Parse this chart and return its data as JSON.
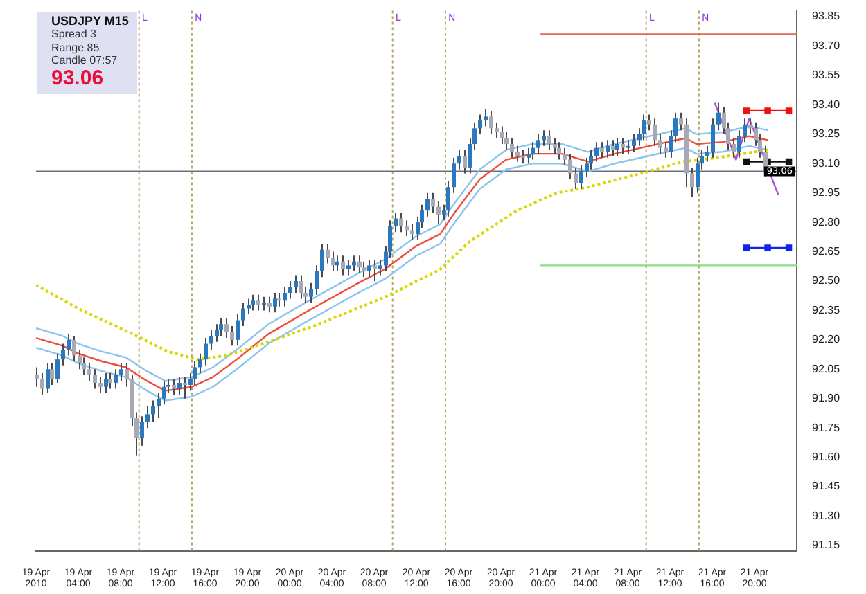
{
  "chart_data": {
    "type": "candlestick",
    "title": "USDJPY M15",
    "annotations": [
      "Spread 3",
      "Range 85",
      "Candle 07:57",
      "93.06"
    ],
    "xlim": [
      "2010-04-19T00:00",
      "2010-04-22T00:00"
    ],
    "xticks": [
      {
        "value": "2010-04-19T00:00",
        "label": "19 Apr 2010"
      },
      {
        "value": "2010-04-19T04:00",
        "label": "19 Apr 04:00"
      },
      {
        "value": "2010-04-19T08:00",
        "label": "19 Apr 08:00"
      },
      {
        "value": "2010-04-19T12:00",
        "label": "19 Apr 12:00"
      },
      {
        "value": "2010-04-19T16:00",
        "label": "19 Apr 16:00"
      },
      {
        "value": "2010-04-19T20:00",
        "label": "19 Apr 20:00"
      },
      {
        "value": "2010-04-20T00:00",
        "label": "20 Apr 00:00"
      },
      {
        "value": "2010-04-20T04:00",
        "label": "20 Apr 04:00"
      },
      {
        "value": "2010-04-20T08:00",
        "label": "20 Apr 08:00"
      },
      {
        "value": "2010-04-20T12:00",
        "label": "20 Apr 12:00"
      },
      {
        "value": "2010-04-20T16:00",
        "label": "20 Apr 16:00"
      },
      {
        "value": "2010-04-20T20:00",
        "label": "20 Apr 20:00"
      },
      {
        "value": "2010-04-21T00:00",
        "label": "21 Apr 00:00"
      },
      {
        "value": "2010-04-21T04:00",
        "label": "21 Apr 04:00"
      },
      {
        "value": "2010-04-21T08:00",
        "label": "21 Apr 08:00"
      },
      {
        "value": "2010-04-21T12:00",
        "label": "21 Apr 12:00"
      },
      {
        "value": "2010-04-21T16:00",
        "label": "21 Apr 16:00"
      },
      {
        "value": "2010-04-21T20:00",
        "label": "21 Apr 20:00"
      }
    ],
    "ylim": [
      91.12,
      93.88
    ],
    "yticks": [
      93.85,
      {
        "value": 93.7,
        "label": "93.70"
      },
      93.55,
      {
        "value": 93.4,
        "label": "93.40"
      },
      93.25,
      {
        "value": 93.1,
        "label": "93.10"
      },
      92.95,
      {
        "value": 92.8,
        "label": "92.80"
      },
      92.65,
      {
        "value": 92.5,
        "label": "92.50"
      },
      92.35,
      {
        "value": 92.2,
        "label": "92.20"
      },
      92.05,
      {
        "value": 91.9,
        "label": "91.90"
      },
      91.75,
      {
        "value": 91.6,
        "label": "91.60"
      },
      91.45,
      {
        "value": 91.3,
        "label": "91.30"
      },
      91.15
    ],
    "legend": false,
    "ref_lines": [
      {
        "axis": "x",
        "value": "2010-04-19T09:45",
        "label": "L",
        "color": "#b8a468",
        "line_style": "dotted"
      },
      {
        "axis": "x",
        "value": "2010-04-19T14:45",
        "label": "N",
        "color": "#b8a468",
        "line_style": "dotted"
      },
      {
        "axis": "x",
        "value": "2010-04-20T09:45",
        "label": "L",
        "color": "#b8a468",
        "line_style": "dotted"
      },
      {
        "axis": "x",
        "value": "2010-04-20T14:45",
        "label": "N",
        "color": "#b8a468",
        "line_style": "dotted"
      },
      {
        "axis": "x",
        "value": "2010-04-21T09:45",
        "label": "L",
        "color": "#b8a468",
        "line_style": "dotted"
      },
      {
        "axis": "x",
        "value": "2010-04-21T14:45",
        "label": "N",
        "color": "#b8a468",
        "line_style": "dotted"
      },
      {
        "axis": "y",
        "value": 93.06,
        "label": "93.06",
        "color": "#6e6e80",
        "line_style": "solid"
      }
    ],
    "series": [
      {
        "colors": [
          "#a9a9b4",
          "#a9a9b4",
          "#2a78c0",
          "#a9a9b4",
          "#2a78c0",
          "#2a78c0",
          "#2a78c0",
          "#a9a9b4",
          "#a9a9b4",
          "#a9a9b4",
          "#a9a9b4",
          "#a9a9b4",
          "#a9a9b4",
          "#2a78c0",
          "#a9a9b4",
          "#2a78c0",
          "#2a78c0",
          "#a9a9b4",
          "#a9a9b4",
          "#a9a9b4",
          "#2a78c0",
          "#2a78c0",
          "#2a78c0",
          "#2a78c0",
          "#2a78c0",
          "#2a78c0",
          "#a9a9b4",
          "#2a78c0",
          "#a9a9b4",
          "#2a78c0",
          "#2a78c0",
          "#2a78c0",
          "#2a78c0",
          "#2a78c0",
          "#2a78c0",
          "#2a78c0",
          "#a9a9b4",
          "#a9a9b4",
          "#2a78c0",
          "#2a78c0",
          "#2a78c0",
          "#2a78c0",
          "#a9a9b4",
          "#2a78c0",
          "#a9a9b4",
          "#2a78c0",
          "#a9a9b4",
          "#2a78c0",
          "#2a78c0",
          "#2a78c0",
          "#a9a9b4",
          "#a9a9b4",
          "#2a78c0",
          "#2a78c0",
          "#2a78c0",
          "#a9a9b4",
          "#a9a9b4",
          "#2a78c0",
          "#a9a9b4",
          "#2a78c0",
          "#2a78c0",
          "#a9a9b4",
          "#a9a9b4",
          "#2a78c0",
          "#a9a9b4",
          "#2a78c0",
          "#2a78c0",
          "#2a78c0",
          "#2a78c0",
          "#a9a9b4",
          "#a9a9b4",
          "#a9a9b4",
          "#2a78c0",
          "#2a78c0",
          "#2a78c0",
          "#a9a9b4",
          "#a9a9b4",
          "#2a78c0",
          "#2a78c0",
          "#2a78c0",
          "#2a78c0",
          "#a9a9b4",
          "#2a78c0",
          "#2a78c0",
          "#2a78c0",
          "#2a78c0",
          "#a9a9b4",
          "#a9a9b4",
          "#a9a9b4",
          "#a9a9b4",
          "#a9a9b4",
          "#a9a9b4",
          "#a9a9b4",
          "#2a78c0",
          "#2a78c0",
          "#2a78c0",
          "#2a78c0",
          "#a9a9b4",
          "#a9a9b4",
          "#a9a9b4",
          "#a9a9b4",
          "#a9a9b4",
          "#a9a9b4",
          "#2a78c0",
          "#2a78c0",
          "#2a78c0",
          "#2a78c0",
          "#a9a9b4",
          "#2a78c0",
          "#a9a9b4",
          "#2a78c0",
          "#a9a9b4",
          "#2a78c0",
          "#2a78c0",
          "#2a78c0",
          "#2a78c0",
          "#a9a9b4",
          "#a9a9b4",
          "#a9a9b4",
          "#a9a9b4",
          "#2a78c0",
          "#2a78c0",
          "#a9a9b4",
          "#a9a9b4",
          "#a9a9b4",
          "#2a78c0",
          "#2a78c0",
          "#2a78c0",
          "#2a78c0",
          "#2a78c0",
          "#a9a9b4",
          "#a9a9b4",
          "#a9a9b4",
          "#2a78c0",
          "#2a78c0",
          "#a9a9b4",
          "#a9a9b4",
          "#a9a9b4",
          "#a9a9b4"
        ],
        "x": [
          "2010-04-19T00:00",
          "2010-04-19T00:30",
          "2010-04-19T01:00",
          "2010-04-19T01:30",
          "2010-04-19T02:00",
          "2010-04-19T02:30",
          "2010-04-19T03:00",
          "2010-04-19T03:30",
          "2010-04-19T04:00",
          "2010-04-19T04:30",
          "2010-04-19T05:00",
          "2010-04-19T05:30",
          "2010-04-19T06:00",
          "2010-04-19T06:30",
          "2010-04-19T07:00",
          "2010-04-19T07:30",
          "2010-04-19T08:00",
          "2010-04-19T08:30",
          "2010-04-19T09:00",
          "2010-04-19T09:30",
          "2010-04-19T10:00",
          "2010-04-19T10:30",
          "2010-04-19T11:00",
          "2010-04-19T11:30",
          "2010-04-19T12:00",
          "2010-04-19T12:30",
          "2010-04-19T13:00",
          "2010-04-19T13:30",
          "2010-04-19T14:00",
          "2010-04-19T14:30",
          "2010-04-19T15:00",
          "2010-04-19T15:30",
          "2010-04-19T16:00",
          "2010-04-19T16:30",
          "2010-04-19T17:00",
          "2010-04-19T17:30",
          "2010-04-19T18:00",
          "2010-04-19T18:30",
          "2010-04-19T19:00",
          "2010-04-19T19:30",
          "2010-04-19T20:00",
          "2010-04-19T20:30",
          "2010-04-19T21:00",
          "2010-04-19T21:30",
          "2010-04-19T22:00",
          "2010-04-19T22:30",
          "2010-04-19T23:00",
          "2010-04-19T23:30",
          "2010-04-20T00:00",
          "2010-04-20T00:30",
          "2010-04-20T01:00",
          "2010-04-20T01:30",
          "2010-04-20T02:00",
          "2010-04-20T02:30",
          "2010-04-20T03:00",
          "2010-04-20T03:30",
          "2010-04-20T04:00",
          "2010-04-20T04:30",
          "2010-04-20T05:00",
          "2010-04-20T05:30",
          "2010-04-20T06:00",
          "2010-04-20T06:30",
          "2010-04-20T07:00",
          "2010-04-20T07:30",
          "2010-04-20T08:00",
          "2010-04-20T08:30",
          "2010-04-20T09:00",
          "2010-04-20T09:30",
          "2010-04-20T10:00",
          "2010-04-20T10:30",
          "2010-04-20T11:00",
          "2010-04-20T11:30",
          "2010-04-20T12:00",
          "2010-04-20T12:30",
          "2010-04-20T13:00",
          "2010-04-20T13:30",
          "2010-04-20T14:00",
          "2010-04-20T14:30",
          "2010-04-20T15:00",
          "2010-04-20T15:30",
          "2010-04-20T16:00",
          "2010-04-20T16:30",
          "2010-04-20T17:00",
          "2010-04-20T17:30",
          "2010-04-20T18:00",
          "2010-04-20T18:30",
          "2010-04-20T19:00",
          "2010-04-20T19:30",
          "2010-04-20T20:00",
          "2010-04-20T20:30",
          "2010-04-20T21:00",
          "2010-04-20T21:30",
          "2010-04-20T22:00",
          "2010-04-20T22:30",
          "2010-04-20T23:00",
          "2010-04-20T23:30",
          "2010-04-21T00:00",
          "2010-04-21T00:30",
          "2010-04-21T01:00",
          "2010-04-21T01:30",
          "2010-04-21T02:00",
          "2010-04-21T02:30",
          "2010-04-21T03:00",
          "2010-04-21T03:30",
          "2010-04-21T04:00",
          "2010-04-21T04:30",
          "2010-04-21T05:00",
          "2010-04-21T05:30",
          "2010-04-21T06:00",
          "2010-04-21T06:30",
          "2010-04-21T07:00",
          "2010-04-21T07:30",
          "2010-04-21T08:00",
          "2010-04-21T08:30",
          "2010-04-21T09:00",
          "2010-04-21T09:30",
          "2010-04-21T10:00",
          "2010-04-21T10:30",
          "2010-04-21T11:00",
          "2010-04-21T11:30",
          "2010-04-21T12:00",
          "2010-04-21T12:30",
          "2010-04-21T13:00",
          "2010-04-21T13:30",
          "2010-04-21T14:00",
          "2010-04-21T14:30",
          "2010-04-21T15:00",
          "2010-04-21T15:30",
          "2010-04-21T16:00",
          "2010-04-21T16:30",
          "2010-04-21T17:00",
          "2010-04-21T17:30",
          "2010-04-21T18:00",
          "2010-04-21T18:30",
          "2010-04-21T19:00",
          "2010-04-21T19:30",
          "2010-04-21T20:00",
          "2010-04-21T20:30",
          "2010-04-21T21:00"
        ],
        "ohlc": [
          [
            92.02,
            92.06,
            91.96,
            92.0
          ],
          [
            92.0,
            92.03,
            91.92,
            91.95
          ],
          [
            91.95,
            92.08,
            91.93,
            92.05
          ],
          [
            92.05,
            92.08,
            91.97,
            92.0
          ],
          [
            92.0,
            92.13,
            91.98,
            92.1
          ],
          [
            92.1,
            92.18,
            92.07,
            92.15
          ],
          [
            92.15,
            92.23,
            92.12,
            92.2
          ],
          [
            92.2,
            92.22,
            92.09,
            92.12
          ],
          [
            92.12,
            92.15,
            92.05,
            92.08
          ],
          [
            92.08,
            92.11,
            92.02,
            92.05
          ],
          [
            92.05,
            92.08,
            91.99,
            92.02
          ],
          [
            92.02,
            92.05,
            91.95,
            91.98
          ],
          [
            91.98,
            92.01,
            91.93,
            91.96
          ],
          [
            91.96,
            92.03,
            91.93,
            92.0
          ],
          [
            92.0,
            92.03,
            91.95,
            91.98
          ],
          [
            91.98,
            92.05,
            91.95,
            92.02
          ],
          [
            92.02,
            92.08,
            91.99,
            92.05
          ],
          [
            92.05,
            92.08,
            91.96,
            92.0
          ],
          [
            92.0,
            92.02,
            91.76,
            91.8
          ],
          [
            91.8,
            91.83,
            91.61,
            91.7
          ],
          [
            91.7,
            91.81,
            91.66,
            91.78
          ],
          [
            91.78,
            91.86,
            91.75,
            91.82
          ],
          [
            91.82,
            91.89,
            91.78,
            91.86
          ],
          [
            91.86,
            91.93,
            91.8,
            91.9
          ],
          [
            91.9,
            91.99,
            91.87,
            91.96
          ],
          [
            91.96,
            92.0,
            91.93,
            91.97
          ],
          [
            91.97,
            92.0,
            91.92,
            91.95
          ],
          [
            91.95,
            92.01,
            91.92,
            91.98
          ],
          [
            91.98,
            92.01,
            91.9,
            91.97
          ],
          [
            91.97,
            92.03,
            91.94,
            92.0
          ],
          [
            92.0,
            92.09,
            91.97,
            92.06
          ],
          [
            92.06,
            92.13,
            92.03,
            92.1
          ],
          [
            92.1,
            92.21,
            92.07,
            92.18
          ],
          [
            92.18,
            92.25,
            92.15,
            92.22
          ],
          [
            92.22,
            92.28,
            92.19,
            92.25
          ],
          [
            92.25,
            92.31,
            92.22,
            92.28
          ],
          [
            92.28,
            92.31,
            92.21,
            92.24
          ],
          [
            92.24,
            92.27,
            92.17,
            92.2
          ],
          [
            92.2,
            92.33,
            92.17,
            92.3
          ],
          [
            92.3,
            92.39,
            92.27,
            92.36
          ],
          [
            92.36,
            92.41,
            92.33,
            92.38
          ],
          [
            92.38,
            92.43,
            92.35,
            92.4
          ],
          [
            92.4,
            92.43,
            92.35,
            92.38
          ],
          [
            92.38,
            92.42,
            92.35,
            92.39
          ],
          [
            92.39,
            92.42,
            92.34,
            92.37
          ],
          [
            92.37,
            92.44,
            92.34,
            92.41
          ],
          [
            92.41,
            92.44,
            92.37,
            92.4
          ],
          [
            92.4,
            92.47,
            92.37,
            92.44
          ],
          [
            92.44,
            92.5,
            92.41,
            92.47
          ],
          [
            92.47,
            92.53,
            92.44,
            92.5
          ],
          [
            92.5,
            92.53,
            92.41,
            92.44
          ],
          [
            92.44,
            92.47,
            92.39,
            92.42
          ],
          [
            92.42,
            92.49,
            92.39,
            92.46
          ],
          [
            92.46,
            92.58,
            92.43,
            92.55
          ],
          [
            92.55,
            92.69,
            92.52,
            92.66
          ],
          [
            92.66,
            92.69,
            92.59,
            92.62
          ],
          [
            92.62,
            92.65,
            92.55,
            92.58
          ],
          [
            92.58,
            92.63,
            92.55,
            92.6
          ],
          [
            92.6,
            92.63,
            92.53,
            92.56
          ],
          [
            92.56,
            92.61,
            92.53,
            92.58
          ],
          [
            92.58,
            92.63,
            92.55,
            92.6
          ],
          [
            92.6,
            92.63,
            92.54,
            92.57
          ],
          [
            92.57,
            92.6,
            92.52,
            92.55
          ],
          [
            92.55,
            92.61,
            92.52,
            92.58
          ],
          [
            92.58,
            92.61,
            92.5,
            92.56
          ],
          [
            92.56,
            92.61,
            92.53,
            92.58
          ],
          [
            92.58,
            92.68,
            92.55,
            92.65
          ],
          [
            92.65,
            92.81,
            92.62,
            92.78
          ],
          [
            92.78,
            92.85,
            92.75,
            92.82
          ],
          [
            92.82,
            92.85,
            92.75,
            92.78
          ],
          [
            92.78,
            92.81,
            92.73,
            92.76
          ],
          [
            92.76,
            92.79,
            92.71,
            92.74
          ],
          [
            92.74,
            92.83,
            92.71,
            92.8
          ],
          [
            92.8,
            92.89,
            92.77,
            92.86
          ],
          [
            92.86,
            92.95,
            92.83,
            92.92
          ],
          [
            92.92,
            92.95,
            92.85,
            92.88
          ],
          [
            92.88,
            92.91,
            92.79,
            92.84
          ],
          [
            92.84,
            92.89,
            92.81,
            92.86
          ],
          [
            92.86,
            93.01,
            92.83,
            92.98
          ],
          [
            92.98,
            93.13,
            92.95,
            93.1
          ],
          [
            93.1,
            93.17,
            93.07,
            93.14
          ],
          [
            93.14,
            93.17,
            93.05,
            93.08
          ],
          [
            93.08,
            93.23,
            93.05,
            93.2
          ],
          [
            93.2,
            93.31,
            93.17,
            93.28
          ],
          [
            93.28,
            93.35,
            93.25,
            93.32
          ],
          [
            93.32,
            93.38,
            93.29,
            93.34
          ],
          [
            93.34,
            93.37,
            93.25,
            93.28
          ],
          [
            93.28,
            93.31,
            93.23,
            93.26
          ],
          [
            93.26,
            93.29,
            93.2,
            93.23
          ],
          [
            93.23,
            93.26,
            93.17,
            93.2
          ],
          [
            93.2,
            93.23,
            93.13,
            93.16
          ],
          [
            93.16,
            93.19,
            93.11,
            93.14
          ],
          [
            93.14,
            93.17,
            93.1,
            93.13
          ],
          [
            93.13,
            93.18,
            93.1,
            93.15
          ],
          [
            93.15,
            93.21,
            93.12,
            93.18
          ],
          [
            93.18,
            93.25,
            93.15,
            93.22
          ],
          [
            93.22,
            93.27,
            93.19,
            93.24
          ],
          [
            93.24,
            93.27,
            93.17,
            93.2
          ],
          [
            93.2,
            93.23,
            93.15,
            93.18
          ],
          [
            93.18,
            93.21,
            93.12,
            93.15
          ],
          [
            93.15,
            93.18,
            93.09,
            93.12
          ],
          [
            93.12,
            93.15,
            93.02,
            93.05
          ],
          [
            93.05,
            93.08,
            92.97,
            93.0
          ],
          [
            93.0,
            93.09,
            92.97,
            93.06
          ],
          [
            93.06,
            93.13,
            93.03,
            93.1
          ],
          [
            93.1,
            93.17,
            93.07,
            93.14
          ],
          [
            93.14,
            93.21,
            93.11,
            93.18
          ],
          [
            93.18,
            93.21,
            93.13,
            93.16
          ],
          [
            93.16,
            93.22,
            93.13,
            93.19
          ],
          [
            93.19,
            93.22,
            93.14,
            93.17
          ],
          [
            93.17,
            93.23,
            93.14,
            93.2
          ],
          [
            93.2,
            93.23,
            93.15,
            93.18
          ],
          [
            93.18,
            93.22,
            93.15,
            93.19
          ],
          [
            93.19,
            93.25,
            93.16,
            93.22
          ],
          [
            93.22,
            93.28,
            93.19,
            93.25
          ],
          [
            93.25,
            93.35,
            93.22,
            93.32
          ],
          [
            93.32,
            93.35,
            93.27,
            93.3
          ],
          [
            93.3,
            93.33,
            93.19,
            93.22
          ],
          [
            93.22,
            93.25,
            93.15,
            93.18
          ],
          [
            93.18,
            93.21,
            93.13,
            93.16
          ],
          [
            93.16,
            93.27,
            93.13,
            93.24
          ],
          [
            93.24,
            93.36,
            93.21,
            93.33
          ],
          [
            93.33,
            93.36,
            93.27,
            93.3
          ],
          [
            93.3,
            93.33,
            92.98,
            93.05
          ],
          [
            93.05,
            93.08,
            92.93,
            92.98
          ],
          [
            92.98,
            93.13,
            92.95,
            93.1
          ],
          [
            93.1,
            93.17,
            93.07,
            93.14
          ],
          [
            93.14,
            93.19,
            93.11,
            93.16
          ],
          [
            93.16,
            93.33,
            93.13,
            93.3
          ],
          [
            93.3,
            93.41,
            93.27,
            93.36
          ],
          [
            93.36,
            93.39,
            93.25,
            93.28
          ],
          [
            93.28,
            93.31,
            93.17,
            93.2
          ],
          [
            93.2,
            93.23,
            93.13,
            93.16
          ],
          [
            93.16,
            93.27,
            93.13,
            93.24
          ],
          [
            93.24,
            93.33,
            93.21,
            93.3
          ],
          [
            93.3,
            93.33,
            93.25,
            93.28
          ],
          [
            93.28,
            93.31,
            93.19,
            93.22
          ],
          [
            93.22,
            93.25,
            93.13,
            93.16
          ],
          [
            93.16,
            93.19,
            93.03,
            93.06
          ]
        ]
      },
      {
        "type": "line",
        "color": "#d8d800",
        "line_style": "dotted",
        "marker": "none",
        "x": [
          "2010-04-19T00:00",
          "2010-04-19T04:00",
          "2010-04-19T08:45",
          "2010-04-19T12:30",
          "2010-04-19T15:15",
          "2010-04-19T18:00",
          "2010-04-19T22:00",
          "2010-04-20T02:15",
          "2010-04-20T05:30",
          "2010-04-20T09:30",
          "2010-04-20T14:15",
          "2010-04-20T17:00",
          "2010-04-20T21:30",
          "2010-04-21T01:15",
          "2010-04-21T04:15",
          "2010-04-21T09:15",
          "2010-04-21T13:15",
          "2010-04-21T16:30",
          "2010-04-21T21:15"
        ],
        "values": [
          92.48,
          92.36,
          92.24,
          92.14,
          92.1,
          92.12,
          92.19,
          92.27,
          92.34,
          92.43,
          92.56,
          92.7,
          92.86,
          92.95,
          92.98,
          93.05,
          93.11,
          93.13,
          93.17
        ]
      },
      {
        "type": "line",
        "color": "#f04a3a",
        "line_style": "solid",
        "marker": "none",
        "x": [
          "2010-04-19T00:00",
          "2010-04-19T02:30",
          "2010-04-19T04:00",
          "2010-04-19T06:15",
          "2010-04-19T08:30",
          "2010-04-19T10:30",
          "2010-04-19T12:15",
          "2010-04-19T14:45",
          "2010-04-19T16:45",
          "2010-04-19T19:00",
          "2010-04-19T22:00",
          "2010-04-20T01:30",
          "2010-04-20T03:30",
          "2010-04-20T06:30",
          "2010-04-20T09:00",
          "2010-04-20T12:00",
          "2010-04-20T14:15",
          "2010-04-20T15:30",
          "2010-04-20T18:00",
          "2010-04-20T20:30",
          "2010-04-20T23:00",
          "2010-04-21T01:45",
          "2010-04-21T04:15",
          "2010-04-21T06:45",
          "2010-04-21T09:15",
          "2010-04-21T11:45",
          "2010-04-21T13:30",
          "2010-04-21T14:30",
          "2010-04-21T17:00",
          "2010-04-21T19:30",
          "2010-04-21T21:15"
        ],
        "values": [
          92.21,
          92.17,
          92.13,
          92.09,
          92.06,
          91.99,
          91.94,
          91.96,
          92.01,
          92.1,
          92.23,
          92.34,
          92.4,
          92.49,
          92.56,
          92.68,
          92.74,
          92.84,
          93.02,
          93.12,
          93.15,
          93.15,
          93.11,
          93.15,
          93.18,
          93.21,
          93.23,
          93.2,
          93.21,
          93.24,
          93.22
        ]
      },
      {
        "type": "line",
        "color": "#8cc4f0",
        "line_style": "solid",
        "marker": "none",
        "x": [
          "2010-04-19T00:00",
          "2010-04-19T02:30",
          "2010-04-19T04:00",
          "2010-04-19T06:15",
          "2010-04-19T08:30",
          "2010-04-19T10:30",
          "2010-04-19T12:15",
          "2010-04-19T14:45",
          "2010-04-19T16:45",
          "2010-04-19T19:00",
          "2010-04-19T22:00",
          "2010-04-20T01:30",
          "2010-04-20T03:30",
          "2010-04-20T06:30",
          "2010-04-20T09:00",
          "2010-04-20T12:00",
          "2010-04-20T14:15",
          "2010-04-20T15:30",
          "2010-04-20T18:00",
          "2010-04-20T20:30",
          "2010-04-20T23:00",
          "2010-04-21T01:45",
          "2010-04-21T04:15",
          "2010-04-21T06:45",
          "2010-04-21T09:15",
          "2010-04-21T11:45",
          "2010-04-21T13:30",
          "2010-04-21T14:30",
          "2010-04-21T17:00",
          "2010-04-21T19:30",
          "2010-04-21T21:15"
        ],
        "values": [
          92.26,
          92.22,
          92.18,
          92.14,
          92.11,
          92.04,
          91.99,
          92.01,
          92.06,
          92.15,
          92.28,
          92.39,
          92.45,
          92.54,
          92.61,
          92.73,
          92.79,
          92.89,
          93.07,
          93.17,
          93.2,
          93.2,
          93.16,
          93.2,
          93.23,
          93.26,
          93.28,
          93.25,
          93.26,
          93.29,
          93.27
        ]
      },
      {
        "type": "line",
        "color": "#8cc4f0",
        "line_style": "solid",
        "marker": "none",
        "x": [
          "2010-04-19T00:00",
          "2010-04-19T02:30",
          "2010-04-19T04:00",
          "2010-04-19T06:15",
          "2010-04-19T08:30",
          "2010-04-19T10:30",
          "2010-04-19T12:15",
          "2010-04-19T14:45",
          "2010-04-19T16:45",
          "2010-04-19T19:00",
          "2010-04-19T22:00",
          "2010-04-20T01:30",
          "2010-04-20T03:30",
          "2010-04-20T06:30",
          "2010-04-20T09:00",
          "2010-04-20T12:00",
          "2010-04-20T14:15",
          "2010-04-20T15:30",
          "2010-04-20T18:00",
          "2010-04-20T20:30",
          "2010-04-20T23:00",
          "2010-04-21T01:45",
          "2010-04-21T04:15",
          "2010-04-21T06:45",
          "2010-04-21T09:15",
          "2010-04-21T11:45",
          "2010-04-21T13:30",
          "2010-04-21T14:30",
          "2010-04-21T17:00",
          "2010-04-21T19:30",
          "2010-04-21T21:15"
        ],
        "values": [
          92.16,
          92.12,
          92.08,
          92.04,
          92.01,
          91.94,
          91.89,
          91.91,
          91.96,
          92.05,
          92.18,
          92.29,
          92.35,
          92.44,
          92.51,
          92.63,
          92.69,
          92.79,
          92.97,
          93.07,
          93.1,
          93.1,
          93.06,
          93.1,
          93.13,
          93.16,
          93.18,
          93.15,
          93.16,
          93.19,
          93.17
        ]
      },
      {
        "type": "line",
        "color": "#e06a58",
        "line_style": "solid",
        "marker": "none",
        "x": [
          "2010-04-20T23:45",
          "2010-04-22T00:00"
        ],
        "values": [
          93.76,
          93.76
        ]
      },
      {
        "type": "line",
        "color": "#88dd88",
        "line_style": "solid",
        "marker": "none",
        "x": [
          "2010-04-20T23:45",
          "2010-04-22T00:00"
        ],
        "values": [
          92.58,
          92.58
        ]
      },
      {
        "type": "line",
        "color": "#ee1111",
        "line_style": "solid",
        "marker": "square",
        "x": [
          "2010-04-21T19:15",
          "2010-04-21T21:15",
          "2010-04-21T23:15"
        ],
        "values": [
          93.37,
          93.37,
          93.37
        ]
      },
      {
        "type": "line",
        "color": "#111111",
        "line_style": "solid",
        "marker": "square",
        "x": [
          "2010-04-21T19:15",
          "2010-04-21T21:15",
          "2010-04-21T23:15"
        ],
        "values": [
          93.11,
          93.11,
          93.11
        ]
      },
      {
        "type": "line",
        "color": "#1122ee",
        "line_style": "solid",
        "marker": "square",
        "x": [
          "2010-04-21T19:15",
          "2010-04-21T21:15",
          "2010-04-21T23:15"
        ],
        "values": [
          92.67,
          92.67,
          92.67
        ]
      },
      {
        "type": "line",
        "color": "#b050d8",
        "line_style": "solid",
        "marker": "none",
        "x": [
          "2010-04-21T16:15",
          "2010-04-21T18:15",
          "2010-04-21T19:30",
          "2010-04-21T22:15"
        ],
        "values": [
          93.41,
          93.12,
          93.33,
          92.94
        ]
      }
    ]
  }
}
